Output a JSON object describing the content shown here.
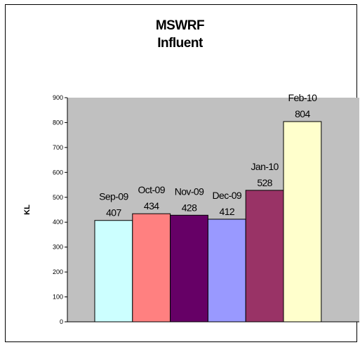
{
  "chart_data": {
    "type": "bar",
    "title_lines": [
      "MSWRF",
      "Influent"
    ],
    "categories": [
      "Sep-09",
      "Oct-09",
      "Nov-09",
      "Dec-09",
      "Jan-10",
      "Feb-10"
    ],
    "values": [
      407,
      434,
      428,
      412,
      528,
      804
    ],
    "ylabel": "KL",
    "xlabel": "",
    "ylim": [
      0,
      900
    ],
    "yticks": [
      0,
      100,
      200,
      300,
      400,
      500,
      600,
      700,
      800,
      900
    ],
    "grid": false,
    "legend": "none",
    "plot_background": "#c0c0c0",
    "bar_colors": [
      "#ccffff",
      "#ff8080",
      "#660066",
      "#9999ff",
      "#993366",
      "#ffffcc"
    ]
  }
}
